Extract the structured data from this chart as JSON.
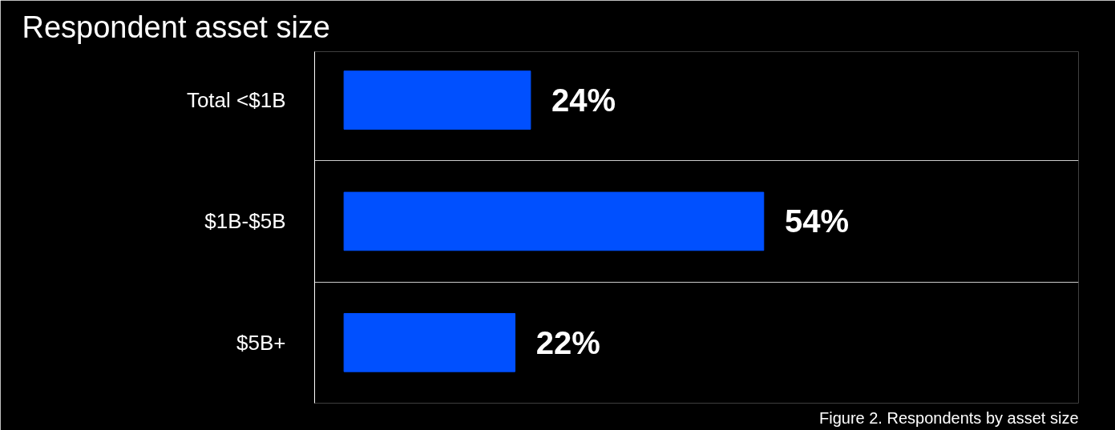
{
  "chart_data": {
    "type": "bar",
    "orientation": "horizontal",
    "title": "Respondent asset size",
    "categories": [
      "Total <$1B",
      "$1B-$5B",
      "$5B+"
    ],
    "values": [
      24,
      54,
      22
    ],
    "value_labels": [
      "24%",
      "54%",
      "22%"
    ],
    "color": "#0050ff",
    "annotations": [
      "Figure 2. Respondents by asset size"
    ]
  }
}
